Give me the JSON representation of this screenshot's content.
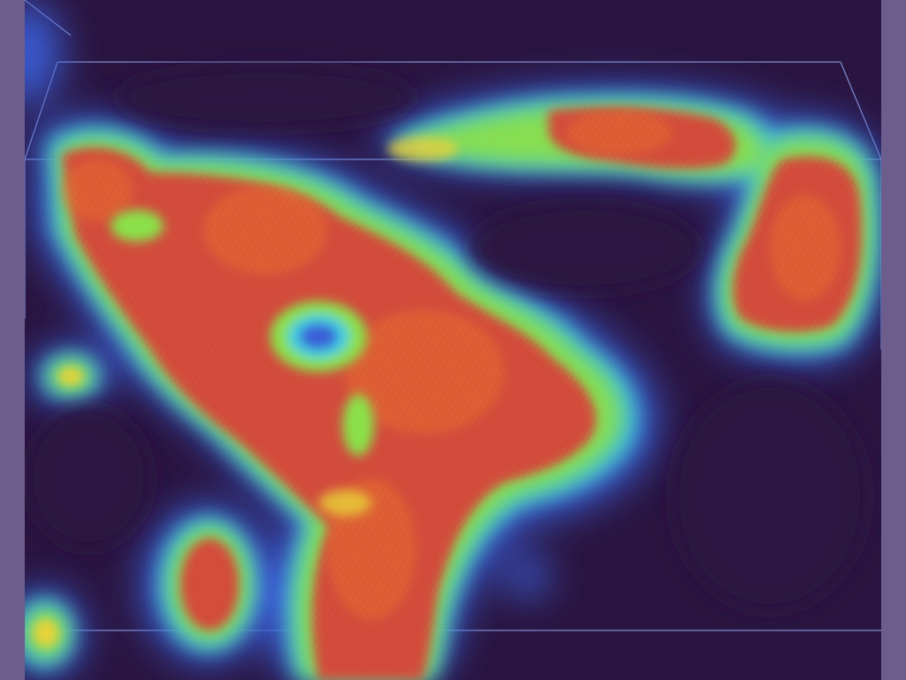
{
  "image": {
    "subject": "heatmap-overlay",
    "colors": {
      "background": "#2a1540",
      "cold_glow": "#3b5fd8",
      "cyan": "#3fd0e0",
      "green": "#8be04a",
      "yellow": "#e8d23a",
      "orange": "#e8702e",
      "red": "#d8453a",
      "bounding_box_line": "#9fb4ff",
      "side_strip": "#6c5d8c"
    }
  }
}
